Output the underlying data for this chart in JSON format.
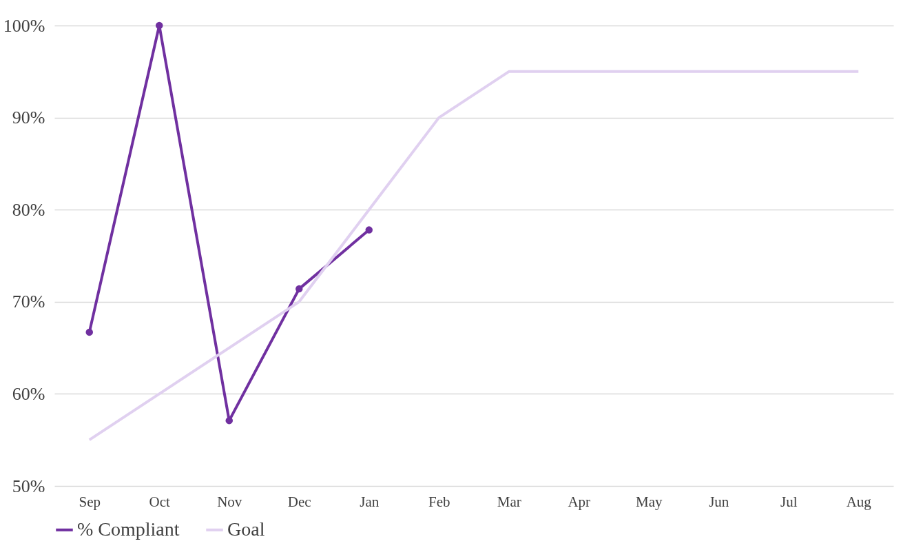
{
  "chart_data": {
    "type": "line",
    "categories": [
      "Sep",
      "Oct",
      "Nov",
      "Dec",
      "Jan",
      "Feb",
      "Mar",
      "Apr",
      "May",
      "Jun",
      "Jul",
      "Aug"
    ],
    "series": [
      {
        "name": "% Compliant",
        "color": "#7030a0",
        "marker": "circle",
        "values": [
          66.7,
          100,
          57.1,
          71.4,
          77.8,
          null,
          null,
          null,
          null,
          null,
          null,
          null
        ]
      },
      {
        "name": "Goal",
        "color": "#e0d0f0",
        "marker": "none",
        "values": [
          55,
          60,
          65,
          70,
          80,
          90,
          95,
          95,
          95,
          95,
          95,
          95
        ]
      }
    ],
    "ylim": [
      50,
      100
    ],
    "yticks": [
      {
        "value": 50,
        "label": "50%"
      },
      {
        "value": 60,
        "label": "60%"
      },
      {
        "value": 70,
        "label": "70%"
      },
      {
        "value": 80,
        "label": "80%"
      },
      {
        "value": 90,
        "label": "90%"
      },
      {
        "value": 100,
        "label": "100%"
      }
    ],
    "grid": "y",
    "legend": "bottom",
    "line_style": "solid"
  }
}
